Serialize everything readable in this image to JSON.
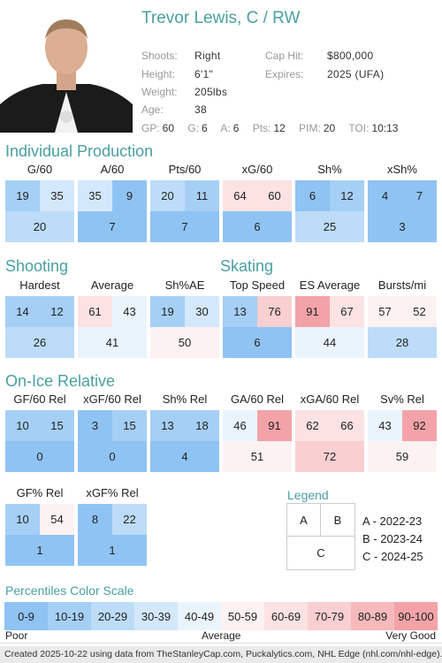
{
  "player": {
    "name": "Trevor Lewis, C / RW",
    "shoots_label": "Shoots:",
    "shoots": "Right",
    "height_label": "Height:",
    "height": "6'1\"",
    "weight_label": "Weight:",
    "weight": "205lbs",
    "age_label": "Age:",
    "age": "38",
    "cap_label": "Cap Hit:",
    "cap": "$800,000",
    "expires_label": "Expires:",
    "expires": "2025 (UFA)",
    "gp_label": "GP:",
    "gp": "60",
    "g_label": "G:",
    "g": "6",
    "a_label": "A:",
    "a": "6",
    "pts_label": "Pts:",
    "pts": "12",
    "pim_label": "PIM:",
    "pim": "20",
    "toi_label": "TOI:",
    "toi": "10:13"
  },
  "sections": {
    "individual": "Individual Production",
    "shooting": "Shooting",
    "skating": "Skating",
    "onice": "On-Ice Relative"
  },
  "tiles": {
    "g60": {
      "label": "G/60",
      "a": "19",
      "b": "35",
      "c": "20"
    },
    "a60": {
      "label": "A/60",
      "a": "35",
      "b": "9",
      "c": "7"
    },
    "pts60": {
      "label": "Pts/60",
      "a": "20",
      "b": "11",
      "c": "7"
    },
    "xg60": {
      "label": "xG/60",
      "a": "64",
      "b": "60",
      "c": "6"
    },
    "shp": {
      "label": "Sh%",
      "a": "6",
      "b": "12",
      "c": "25"
    },
    "xshp": {
      "label": "xSh%",
      "a": "4",
      "b": "7",
      "c": "3"
    },
    "hardest": {
      "label": "Hardest",
      "a": "14",
      "b": "12",
      "c": "26"
    },
    "average": {
      "label": "Average",
      "a": "61",
      "b": "43",
      "c": "41"
    },
    "shpae": {
      "label": "Sh%AE",
      "a": "19",
      "b": "30",
      "c": "50"
    },
    "topspd": {
      "label": "Top Speed",
      "a": "13",
      "b": "76",
      "c": "6"
    },
    "esavg": {
      "label": "ES Average",
      "a": "91",
      "b": "67",
      "c": "44"
    },
    "bursts": {
      "label": "Bursts/mi",
      "a": "57",
      "b": "52",
      "c": "28"
    },
    "gf60": {
      "label": "GF/60 Rel",
      "a": "10",
      "b": "15",
      "c": "0"
    },
    "xgf60": {
      "label": "xGF/60 Rel",
      "a": "3",
      "b": "15",
      "c": "0"
    },
    "shrel": {
      "label": "Sh% Rel",
      "a": "13",
      "b": "18",
      "c": "4"
    },
    "ga60": {
      "label": "GA/60 Rel",
      "a": "46",
      "b": "91",
      "c": "51"
    },
    "xga60": {
      "label": "xGA/60 Rel",
      "a": "62",
      "b": "66",
      "c": "72"
    },
    "svrel": {
      "label": "Sv% Rel",
      "a": "43",
      "b": "92",
      "c": "59"
    },
    "gfp": {
      "label": "GF% Rel",
      "a": "10",
      "b": "54",
      "c": "1"
    },
    "xgfp": {
      "label": "xGF% Rel",
      "a": "8",
      "b": "22",
      "c": "1"
    }
  },
  "legend": {
    "title": "Legend",
    "a": "A",
    "b": "B",
    "c": "C",
    "items": [
      "A - 2022-23",
      "B - 2023-24",
      "C - 2024-25"
    ]
  },
  "scale": {
    "title": "Percentiles Color Scale",
    "bins": [
      "0-9",
      "10-19",
      "20-29",
      "30-39",
      "40-49",
      "50-59",
      "60-69",
      "70-79",
      "80-89",
      "90-100"
    ],
    "colors": [
      "#8fc3f3",
      "#a6cff5",
      "#bcdcf8",
      "#d3e8fa",
      "#eaf4fd",
      "#fdf2f2",
      "#fbe2e3",
      "#f9cfd1",
      "#f6babd",
      "#f3a3a8"
    ],
    "poor": "Poor",
    "average": "Average",
    "very_good": "Very Good"
  },
  "footer": "Created 2025-10-22 using data from TheStanleyCap.com, Puckalytics.com, NHL Edge (nhl.com/nhl-edge)."
}
